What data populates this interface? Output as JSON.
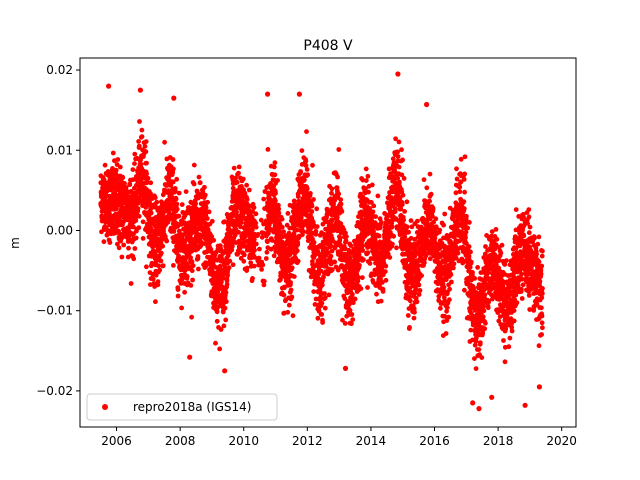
{
  "chart_data": {
    "type": "scatter",
    "title": "P408 V",
    "xlabel": "",
    "ylabel": "m",
    "xlim": [
      2004.85,
      2020.45
    ],
    "ylim": [
      -0.0245,
      0.0215
    ],
    "x_ticks": [
      2006,
      2008,
      2010,
      2012,
      2014,
      2016,
      2018,
      2020
    ],
    "x_tick_labels": [
      "2006",
      "2008",
      "2010",
      "2012",
      "2014",
      "2016",
      "2018",
      "2020"
    ],
    "y_ticks": [
      -0.02,
      -0.01,
      0.0,
      0.01,
      0.02
    ],
    "y_tick_labels": [
      "−0.02",
      "−0.01",
      "0.00",
      "0.01",
      "0.02"
    ],
    "grid": false,
    "legend_position": "lower-left",
    "series": [
      {
        "name": "repro2018a (IGS14)",
        "color": "#ff0000",
        "marker": "circle",
        "x_start": 2005.5,
        "x_end": 2019.4,
        "seasonal_profile": [
          {
            "x": 2005.55,
            "center": 0.004,
            "spread": 0.0045
          },
          {
            "x": 2006.0,
            "center": 0.003,
            "spread": 0.006
          },
          {
            "x": 2006.5,
            "center": 0.002,
            "spread": 0.0055
          },
          {
            "x": 2006.8,
            "center": 0.007,
            "spread": 0.006
          },
          {
            "x": 2007.2,
            "center": -0.002,
            "spread": 0.006
          },
          {
            "x": 2007.7,
            "center": 0.004,
            "spread": 0.006
          },
          {
            "x": 2008.0,
            "center": -0.002,
            "spread": 0.006
          },
          {
            "x": 2008.7,
            "center": 0.001,
            "spread": 0.0055
          },
          {
            "x": 2009.2,
            "center": -0.007,
            "spread": 0.006
          },
          {
            "x": 2009.8,
            "center": 0.002,
            "spread": 0.006
          },
          {
            "x": 2010.5,
            "center": -0.002,
            "spread": 0.005
          },
          {
            "x": 2010.9,
            "center": 0.003,
            "spread": 0.0055
          },
          {
            "x": 2011.3,
            "center": -0.005,
            "spread": 0.006
          },
          {
            "x": 2011.9,
            "center": 0.004,
            "spread": 0.006
          },
          {
            "x": 2012.4,
            "center": -0.005,
            "spread": 0.006
          },
          {
            "x": 2012.9,
            "center": 0.002,
            "spread": 0.006
          },
          {
            "x": 2013.3,
            "center": -0.007,
            "spread": 0.006
          },
          {
            "x": 2013.9,
            "center": 0.001,
            "spread": 0.006
          },
          {
            "x": 2014.3,
            "center": -0.004,
            "spread": 0.0055
          },
          {
            "x": 2014.8,
            "center": 0.005,
            "spread": 0.006
          },
          {
            "x": 2015.3,
            "center": -0.006,
            "spread": 0.006
          },
          {
            "x": 2015.8,
            "center": 0.001,
            "spread": 0.0055
          },
          {
            "x": 2016.3,
            "center": -0.006,
            "spread": 0.006
          },
          {
            "x": 2016.8,
            "center": 0.002,
            "spread": 0.006
          },
          {
            "x": 2017.3,
            "center": -0.011,
            "spread": 0.0055
          },
          {
            "x": 2017.8,
            "center": -0.004,
            "spread": 0.0055
          },
          {
            "x": 2018.3,
            "center": -0.009,
            "spread": 0.005
          },
          {
            "x": 2018.8,
            "center": -0.003,
            "spread": 0.006
          },
          {
            "x": 2019.4,
            "center": -0.007,
            "spread": 0.0055
          }
        ],
        "outliers": [
          {
            "x": 2005.75,
            "y": 0.018
          },
          {
            "x": 2006.75,
            "y": 0.0175
          },
          {
            "x": 2007.8,
            "y": 0.0165
          },
          {
            "x": 2010.75,
            "y": 0.017
          },
          {
            "x": 2011.75,
            "y": 0.017
          },
          {
            "x": 2014.85,
            "y": 0.0195
          },
          {
            "x": 2015.75,
            "y": 0.0157
          },
          {
            "x": 2017.4,
            "y": -0.0222
          },
          {
            "x": 2017.2,
            "y": -0.0215
          },
          {
            "x": 2017.8,
            "y": -0.0208
          },
          {
            "x": 2018.85,
            "y": -0.0218
          },
          {
            "x": 2019.3,
            "y": -0.0195
          },
          {
            "x": 2013.2,
            "y": -0.0172
          },
          {
            "x": 2009.4,
            "y": -0.0175
          },
          {
            "x": 2008.3,
            "y": -0.0158
          }
        ]
      }
    ]
  }
}
